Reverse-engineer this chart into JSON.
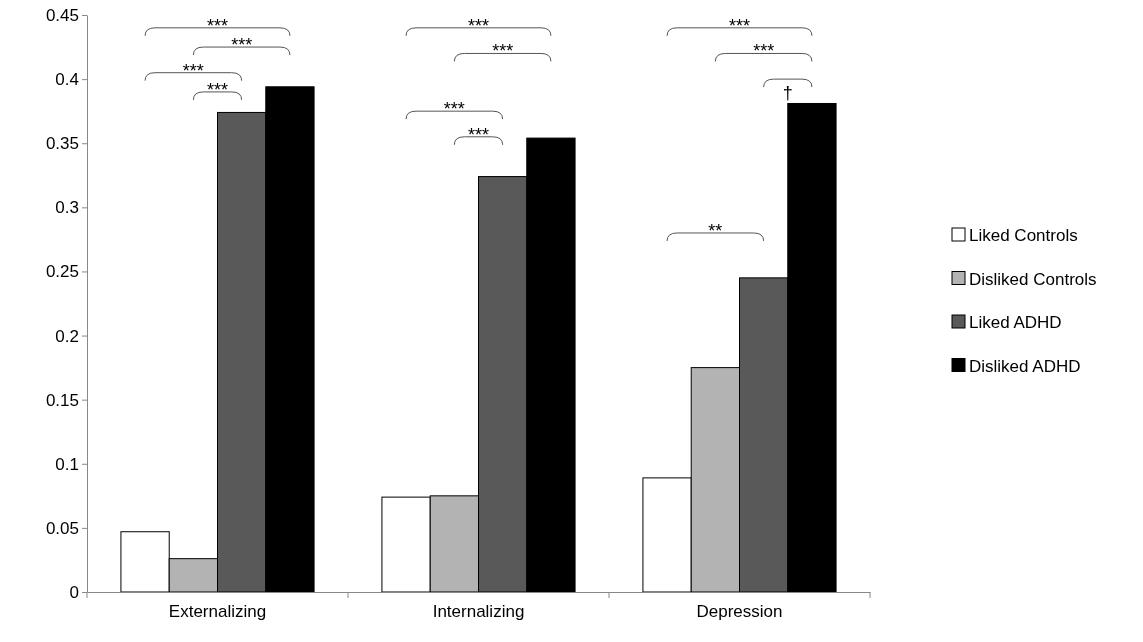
{
  "chart_data": {
    "type": "bar",
    "categories": [
      "Externalizing",
      "Internalizing",
      "Depression"
    ],
    "series": [
      {
        "name": "Liked Controls",
        "color": "#ffffff",
        "values": [
          0.047,
          0.074,
          0.089
        ]
      },
      {
        "name": "Disliked Controls",
        "color": "#b3b3b3",
        "values": [
          0.026,
          0.075,
          0.175
        ]
      },
      {
        "name": "Liked ADHD",
        "color": "#595959",
        "values": [
          0.374,
          0.324,
          0.245
        ]
      },
      {
        "name": "Disliked ADHD",
        "color": "#000000",
        "values": [
          0.394,
          0.354,
          0.381
        ]
      }
    ],
    "ylim": [
      0,
      0.45
    ],
    "yticks": [
      0,
      0.05,
      0.1,
      0.15,
      0.2,
      0.25,
      0.3,
      0.35,
      0.4,
      0.45
    ],
    "grid": false,
    "legend": "right",
    "annotations": [
      "***",
      "***",
      "***",
      "***",
      "***",
      "***",
      "***",
      "***",
      "***",
      "***",
      "**",
      "†"
    ]
  }
}
